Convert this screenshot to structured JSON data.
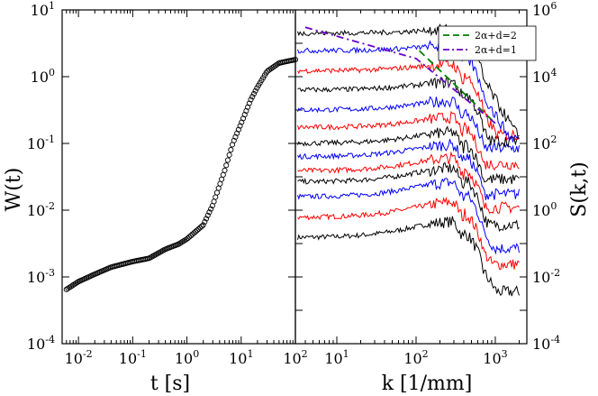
{
  "chart_data": [
    {
      "id": "left",
      "type": "scatter",
      "xlabel": "t [s]",
      "ylabel": "W(t)",
      "xscale": "log",
      "yscale": "log",
      "xlim": [
        0.005,
        100
      ],
      "ylim": [
        0.0001,
        10
      ],
      "x_ticks": [
        {
          "value": 0.01,
          "base": "10",
          "exp": "-2"
        },
        {
          "value": 0.1,
          "base": "10",
          "exp": "-1"
        },
        {
          "value": 1,
          "base": "10",
          "exp": "0"
        },
        {
          "value": 10,
          "base": "10",
          "exp": "1"
        },
        {
          "value": 100,
          "base": "10",
          "exp": "2"
        }
      ],
      "y_ticks": [
        {
          "value": 0.0001,
          "base": "10",
          "exp": "-4"
        },
        {
          "value": 0.001,
          "base": "10",
          "exp": "-3"
        },
        {
          "value": 0.01,
          "base": "10",
          "exp": "-2"
        },
        {
          "value": 0.1,
          "base": "10",
          "exp": "-1"
        },
        {
          "value": 1,
          "base": "10",
          "exp": "0"
        },
        {
          "value": 10,
          "base": "10",
          "exp": "1"
        }
      ],
      "marker": "open-circle",
      "curve_anchors": [
        [
          0.006,
          0.00065
        ],
        [
          0.01,
          0.00085
        ],
        [
          0.02,
          0.0011
        ],
        [
          0.04,
          0.0014
        ],
        [
          0.1,
          0.0017
        ],
        [
          0.2,
          0.0019
        ],
        [
          0.4,
          0.0026
        ],
        [
          0.7,
          0.0031
        ],
        [
          1,
          0.0037
        ],
        [
          2,
          0.006
        ],
        [
          3,
          0.012
        ],
        [
          5,
          0.04
        ],
        [
          7,
          0.1
        ],
        [
          10,
          0.2
        ],
        [
          15,
          0.45
        ],
        [
          20,
          0.7
        ],
        [
          30,
          1.2
        ],
        [
          50,
          1.6
        ],
        [
          70,
          1.7
        ],
        [
          100,
          1.8
        ]
      ]
    },
    {
      "id": "right",
      "type": "line",
      "xlabel": "k [1/mm]",
      "ylabel": "S(k,t)",
      "xscale": "log",
      "yscale": "log",
      "xlim": [
        3,
        2500
      ],
      "ylim": [
        0.0001,
        1000000
      ],
      "x_ticks": [
        {
          "value": 10,
          "base": "10",
          "exp": "1"
        },
        {
          "value": 100,
          "base": "10",
          "exp": "2"
        },
        {
          "value": 1000,
          "base": "10",
          "exp": "3"
        }
      ],
      "y_ticks": [
        {
          "value": 0.0001,
          "base": "10",
          "exp": "-4"
        },
        {
          "value": 0.01,
          "base": "10",
          "exp": "-2"
        },
        {
          "value": 1,
          "base": "10",
          "exp": "0"
        },
        {
          "value": 100,
          "base": "10",
          "exp": "2"
        },
        {
          "value": 10000,
          "base": "10",
          "exp": "4"
        },
        {
          "value": 1000000,
          "base": "10",
          "exp": "6"
        }
      ],
      "legend": {
        "position": "top-right",
        "entries": [
          {
            "label": "2α+d=2",
            "color": "#008000",
            "dash": "dashed"
          },
          {
            "label": "2α+d=1",
            "color": "#6a00c8",
            "dash": "dash-dot"
          }
        ]
      },
      "reference_lines": [
        {
          "label": "2α+d=2",
          "color": "#008000",
          "dash": "dashed",
          "points": [
            [
              110,
              60000
            ],
            [
              1000,
              400
            ]
          ]
        },
        {
          "label": "2α+d=1",
          "color": "#6a00c8",
          "dash": "dash-dot",
          "points": [
            [
              4,
              300000
            ],
            [
              100,
              35000
            ],
            [
              1000,
              400
            ]
          ]
        }
      ],
      "series_colors": [
        "#000000",
        "#ff0000",
        "#0000ff",
        "#000000",
        "#ff0000",
        "#0000ff",
        "#000000",
        "#ff0000",
        "#0000ff",
        "#000000",
        "#ff0000",
        "#0000ff",
        "#000000"
      ],
      "plateaus": [
        0.15,
        0.6,
        2.5,
        7,
        15,
        40,
        100,
        300,
        1000,
        4000,
        15000,
        60000,
        200000
      ],
      "tails": [
        0.003,
        0.02,
        0.06,
        0.3,
        1,
        2.5,
        7,
        20,
        60,
        100,
        150,
        120,
        90
      ]
    }
  ]
}
